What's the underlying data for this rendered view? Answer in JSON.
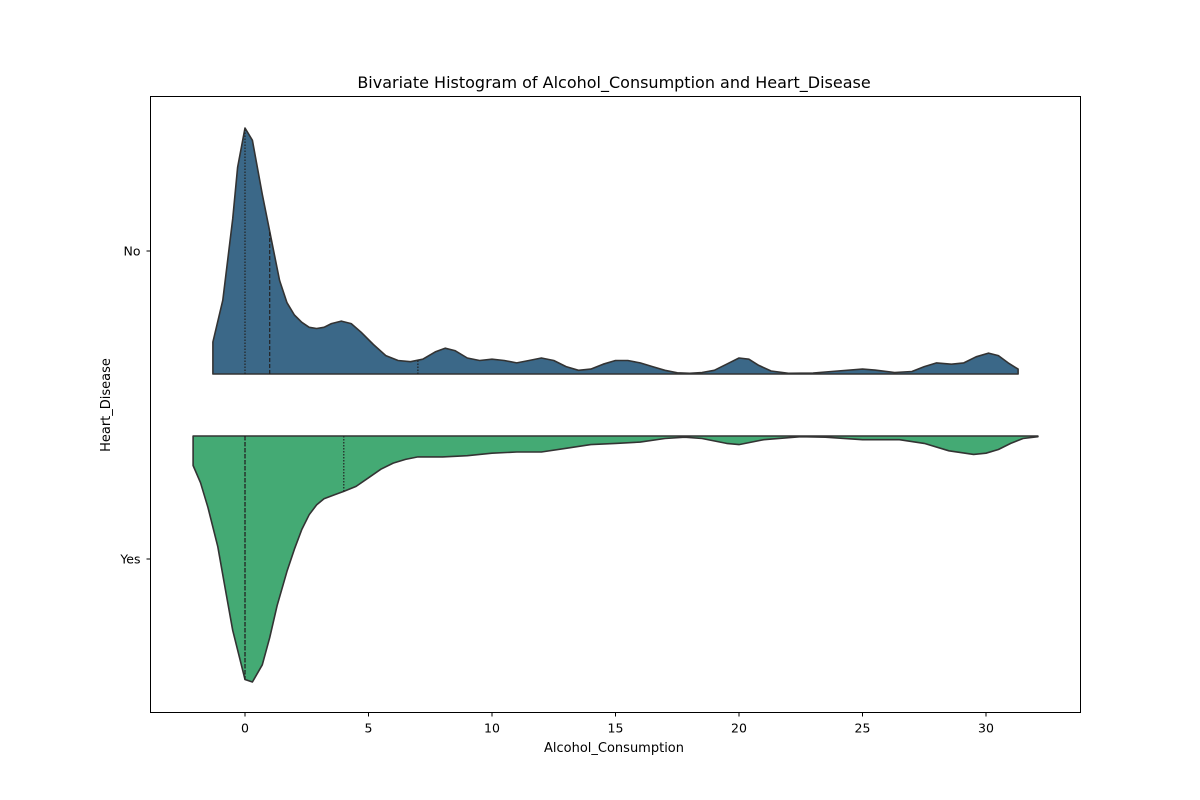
{
  "chart_data": {
    "type": "violin",
    "title": "Bivariate Histogram of Alcohol_Consumption and Heart_Disease",
    "xlabel": "Alcohol_Consumption",
    "ylabel": "Heart_Disease",
    "xlim": [
      -3.9,
      34
    ],
    "xticks": [
      0,
      5,
      10,
      15,
      20,
      25,
      30
    ],
    "categories": [
      "No",
      "Yes"
    ],
    "split": true,
    "grid": false,
    "inner": "quartile",
    "series": [
      {
        "name": "No",
        "color": "#3b6888",
        "side": "upper",
        "x_range": [
          -1.3,
          31.3
        ],
        "quartiles": [
          0,
          1,
          7
        ],
        "density": [
          [
            -1.3,
            0.13
          ],
          [
            -0.9,
            0.3
          ],
          [
            -0.5,
            0.63
          ],
          [
            -0.3,
            0.84
          ],
          [
            0.0,
            1.0
          ],
          [
            0.3,
            0.95
          ],
          [
            0.7,
            0.73
          ],
          [
            1.0,
            0.58
          ],
          [
            1.4,
            0.38
          ],
          [
            1.7,
            0.29
          ],
          [
            2.0,
            0.24
          ],
          [
            2.3,
            0.21
          ],
          [
            2.6,
            0.19
          ],
          [
            2.9,
            0.185
          ],
          [
            3.2,
            0.19
          ],
          [
            3.5,
            0.205
          ],
          [
            3.9,
            0.215
          ],
          [
            4.3,
            0.205
          ],
          [
            4.7,
            0.17
          ],
          [
            5.2,
            0.12
          ],
          [
            5.7,
            0.075
          ],
          [
            6.2,
            0.055
          ],
          [
            6.7,
            0.05
          ],
          [
            7.2,
            0.06
          ],
          [
            7.7,
            0.09
          ],
          [
            8.1,
            0.105
          ],
          [
            8.5,
            0.095
          ],
          [
            9.0,
            0.065
          ],
          [
            9.5,
            0.055
          ],
          [
            10.0,
            0.06
          ],
          [
            10.5,
            0.055
          ],
          [
            11.0,
            0.045
          ],
          [
            11.5,
            0.055
          ],
          [
            12.0,
            0.065
          ],
          [
            12.5,
            0.055
          ],
          [
            13.0,
            0.03
          ],
          [
            13.5,
            0.015
          ],
          [
            14.0,
            0.02
          ],
          [
            14.5,
            0.04
          ],
          [
            15.0,
            0.055
          ],
          [
            15.5,
            0.055
          ],
          [
            16.0,
            0.045
          ],
          [
            16.5,
            0.03
          ],
          [
            17.0,
            0.015
          ],
          [
            17.5,
            0.005
          ],
          [
            18.0,
            0.003
          ],
          [
            18.5,
            0.006
          ],
          [
            19.0,
            0.015
          ],
          [
            19.5,
            0.04
          ],
          [
            20.0,
            0.065
          ],
          [
            20.4,
            0.06
          ],
          [
            20.8,
            0.035
          ],
          [
            21.3,
            0.012
          ],
          [
            22.0,
            0.003
          ],
          [
            23.0,
            0.004
          ],
          [
            24.0,
            0.012
          ],
          [
            25.0,
            0.02
          ],
          [
            25.5,
            0.016
          ],
          [
            26.3,
            0.006
          ],
          [
            27.0,
            0.01
          ],
          [
            27.5,
            0.03
          ],
          [
            28.0,
            0.045
          ],
          [
            28.6,
            0.04
          ],
          [
            29.1,
            0.045
          ],
          [
            29.6,
            0.07
          ],
          [
            30.1,
            0.085
          ],
          [
            30.5,
            0.075
          ],
          [
            30.9,
            0.045
          ],
          [
            31.3,
            0.02
          ]
        ]
      },
      {
        "name": "Yes",
        "color": "#44aa74",
        "side": "lower",
        "x_range": [
          -2.1,
          32.1
        ],
        "quartiles": [
          0,
          0,
          4
        ],
        "density": [
          [
            -2.1,
            0.12
          ],
          [
            -1.8,
            0.19
          ],
          [
            -1.5,
            0.29
          ],
          [
            -1.1,
            0.45
          ],
          [
            -0.8,
            0.62
          ],
          [
            -0.5,
            0.79
          ],
          [
            -0.2,
            0.91
          ],
          [
            0.0,
            0.99
          ],
          [
            0.3,
            1.0
          ],
          [
            0.7,
            0.93
          ],
          [
            1.0,
            0.82
          ],
          [
            1.3,
            0.69
          ],
          [
            1.7,
            0.55
          ],
          [
            2.0,
            0.46
          ],
          [
            2.3,
            0.38
          ],
          [
            2.6,
            0.32
          ],
          [
            2.9,
            0.28
          ],
          [
            3.2,
            0.255
          ],
          [
            3.6,
            0.24
          ],
          [
            4.0,
            0.225
          ],
          [
            4.5,
            0.205
          ],
          [
            5.0,
            0.17
          ],
          [
            5.5,
            0.135
          ],
          [
            6.0,
            0.11
          ],
          [
            6.5,
            0.095
          ],
          [
            7.0,
            0.085
          ],
          [
            8.0,
            0.085
          ],
          [
            9.0,
            0.08
          ],
          [
            10.0,
            0.07
          ],
          [
            11.0,
            0.065
          ],
          [
            12.0,
            0.065
          ],
          [
            13.0,
            0.05
          ],
          [
            14.0,
            0.035
          ],
          [
            15.0,
            0.03
          ],
          [
            16.0,
            0.025
          ],
          [
            17.0,
            0.01
          ],
          [
            17.8,
            0.005
          ],
          [
            18.5,
            0.01
          ],
          [
            19.5,
            0.03
          ],
          [
            20.0,
            0.035
          ],
          [
            21.0,
            0.015
          ],
          [
            22.5,
            0.003
          ],
          [
            23.5,
            0.005
          ],
          [
            25.0,
            0.015
          ],
          [
            26.5,
            0.015
          ],
          [
            27.5,
            0.03
          ],
          [
            28.5,
            0.06
          ],
          [
            29.5,
            0.075
          ],
          [
            30.0,
            0.07
          ],
          [
            30.5,
            0.055
          ],
          [
            31.0,
            0.03
          ],
          [
            31.5,
            0.01
          ],
          [
            32.1,
            0.003
          ]
        ]
      }
    ]
  }
}
